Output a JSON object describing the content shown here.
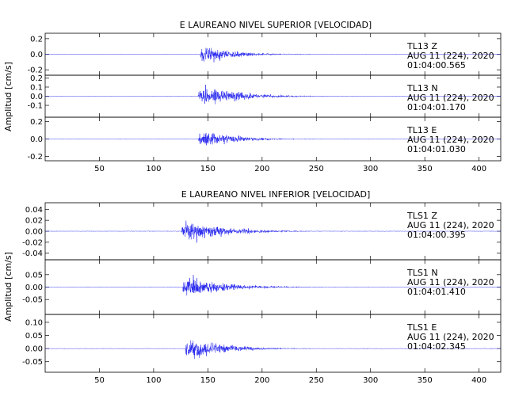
{
  "colors": {
    "trace": "#2020ee",
    "axis": "#000000",
    "background": "#ffffff"
  },
  "chart_data": [
    {
      "type": "line",
      "title": "E LAUREANO NIVEL SUPERIOR [VELOCIDAD]",
      "ylabel": "Amplitud [cm/s]",
      "xlim": [
        0,
        420
      ],
      "xticks": [
        50,
        100,
        150,
        200,
        250,
        300,
        350,
        400
      ],
      "traces": [
        {
          "station": "TL13",
          "component": "Z",
          "date": "AUG 11 (224), 2020",
          "start_time": "01:04:00.565",
          "ylim": [
            -0.27,
            0.27
          ],
          "yticks": [
            -0.2,
            0.0,
            0.2
          ],
          "ytick_labels": [
            "-0.2",
            "0.0",
            "0.2"
          ],
          "onset_s": 143,
          "peak_s": 145,
          "peak_amplitude": 0.25,
          "noise_amplitude": 0.005,
          "decay_s": 28
        },
        {
          "station": "TL13",
          "component": "N",
          "date": "AUG 11 (224), 2020",
          "start_time": "01:04:01.170",
          "ylim": [
            -0.23,
            0.23
          ],
          "yticks": [
            -0.1,
            0.0,
            0.1,
            0.2
          ],
          "ytick_labels": [
            "-0.1",
            "0.0",
            "0.1",
            "0.2"
          ],
          "onset_s": 141,
          "peak_s": 146,
          "peak_amplitude": 0.22,
          "noise_amplitude": 0.005,
          "decay_s": 35
        },
        {
          "station": "TL13",
          "component": "E",
          "date": "AUG 11 (224), 2020",
          "start_time": "01:04:01.030",
          "ylim": [
            -0.25,
            0.25
          ],
          "yticks": [
            -0.2,
            0.0,
            0.2
          ],
          "ytick_labels": [
            "-0.2",
            "0.0",
            "0.2"
          ],
          "onset_s": 141,
          "peak_s": 145,
          "peak_amplitude": 0.2,
          "noise_amplitude": 0.005,
          "decay_s": 30
        }
      ]
    },
    {
      "type": "line",
      "title": "E LAUREANO NIVEL INFERIOR [VELOCIDAD]",
      "ylabel": "Amplitud [cm/s]",
      "xlim": [
        0,
        420
      ],
      "xticks": [
        50,
        100,
        150,
        200,
        250,
        300,
        350,
        400
      ],
      "traces": [
        {
          "station": "TLS1",
          "component": "Z",
          "date": "AUG 11 (224), 2020",
          "start_time": "01:04:00.395",
          "ylim": [
            -0.052,
            0.052
          ],
          "yticks": [
            -0.04,
            -0.02,
            0.0,
            0.02,
            0.04
          ],
          "ytick_labels": [
            "-0.04",
            "-0.02",
            "0.00",
            "0.02",
            "0.04"
          ],
          "onset_s": 126,
          "peak_s": 129,
          "peak_amplitude": 0.045,
          "noise_amplitude": 0.001,
          "decay_s": 35
        },
        {
          "station": "TLS1",
          "component": "N",
          "date": "AUG 11 (224), 2020",
          "start_time": "01:04:01.410",
          "ylim": [
            -0.11,
            0.11
          ],
          "yticks": [
            -0.05,
            0.0,
            0.05
          ],
          "ytick_labels": [
            "-0.05",
            "0.00",
            "0.05"
          ],
          "onset_s": 127,
          "peak_s": 131,
          "peak_amplitude": 0.09,
          "noise_amplitude": 0.002,
          "decay_s": 35
        },
        {
          "station": "TLS1",
          "component": "E",
          "date": "AUG 11 (224), 2020",
          "start_time": "01:04:02.345",
          "ylim": [
            -0.09,
            0.13
          ],
          "yticks": [
            -0.05,
            0.0,
            0.05,
            0.1
          ],
          "ytick_labels": [
            "-0.05",
            "0.00",
            "0.05",
            "0.10"
          ],
          "onset_s": 129,
          "peak_s": 132,
          "peak_amplitude": 0.1,
          "noise_amplitude": 0.002,
          "decay_s": 30
        }
      ]
    }
  ]
}
